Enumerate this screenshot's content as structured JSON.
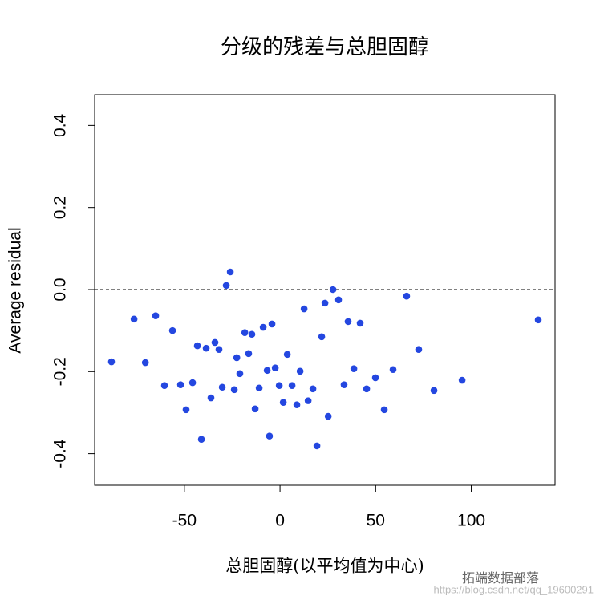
{
  "chart_data": {
    "type": "scatter",
    "title": "分级的残差与总胆固醇",
    "x_label": "总胆固醇(以平均值为中心)",
    "y_label": "Average residual",
    "xlim": [
      -96.9,
      143.8
    ],
    "ylim": [
      -0.477,
      0.475
    ],
    "xticks": [
      -50,
      0,
      50,
      100
    ],
    "yticks": [
      -0.4,
      -0.2,
      {
        "value": 0,
        "label": "0.0"
      },
      0.2,
      0.4
    ],
    "hline": 0,
    "color": "#2447e0",
    "x": [
      -88.1,
      -76.3,
      -70.4,
      -65.0,
      -60.4,
      -56.2,
      -52.0,
      -49.1,
      -45.7,
      -43.2,
      -41.1,
      -38.6,
      -36.1,
      -34.0,
      -31.9,
      -30.2,
      -28.1,
      -26.0,
      -23.9,
      -22.6,
      -21.0,
      -18.4,
      -16.4,
      -14.7,
      -13.0,
      -10.9,
      -8.8,
      -6.7,
      -5.5,
      -4.2,
      -2.5,
      -0.4,
      1.7,
      3.8,
      6.3,
      8.8,
      10.5,
      12.6,
      14.7,
      17.2,
      19.3,
      21.8,
      23.5,
      25.2,
      27.7,
      30.6,
      33.5,
      35.6,
      38.6,
      41.9,
      45.3,
      49.9,
      54.5,
      59.1,
      66.2,
      72.5,
      80.5,
      95.2,
      135.0
    ],
    "values": [
      -0.176,
      -0.072,
      -0.178,
      -0.064,
      -0.234,
      -0.1,
      -0.232,
      -0.293,
      -0.227,
      -0.137,
      -0.365,
      -0.143,
      -0.264,
      -0.129,
      -0.146,
      -0.238,
      0.01,
      0.043,
      -0.244,
      -0.166,
      -0.205,
      -0.105,
      -0.156,
      -0.109,
      -0.291,
      -0.24,
      -0.092,
      -0.197,
      -0.357,
      -0.084,
      -0.191,
      -0.234,
      -0.275,
      -0.158,
      -0.234,
      -0.281,
      -0.199,
      -0.047,
      -0.271,
      -0.242,
      -0.381,
      -0.115,
      -0.033,
      -0.309,
      0.0,
      -0.025,
      -0.232,
      -0.078,
      -0.193,
      -0.082,
      -0.242,
      -0.215,
      -0.293,
      -0.195,
      -0.016,
      -0.146,
      -0.246,
      -0.221,
      -0.074
    ]
  },
  "watermark": {
    "brand": "拓端数据部落",
    "url": "https://blog.csdn.net/qq_19600291"
  }
}
